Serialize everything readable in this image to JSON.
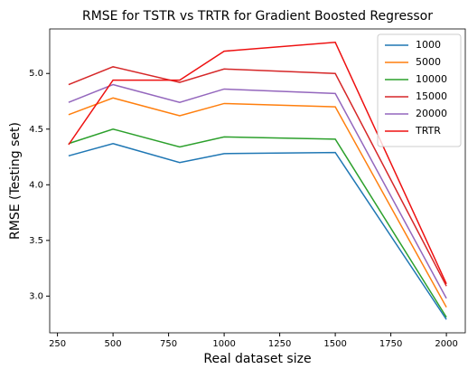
{
  "chart_data": {
    "type": "line",
    "title": "RMSE for TSTR vs TRTR for Gradient Boosted Regressor",
    "x_label": "Real dataset size",
    "y_label": "RMSE (Testing set)",
    "x": [
      300,
      500,
      800,
      1000,
      1500,
      2000
    ],
    "series": [
      {
        "name": "1000",
        "color": "#1f77b4",
        "values": [
          4.26,
          4.37,
          4.2,
          4.28,
          4.29,
          2.79
        ]
      },
      {
        "name": "5000",
        "color": "#ff7f0e",
        "values": [
          4.63,
          4.78,
          4.62,
          4.73,
          4.7,
          2.9
        ]
      },
      {
        "name": "10000",
        "color": "#2ca02c",
        "values": [
          4.37,
          4.5,
          4.34,
          4.43,
          4.41,
          2.81
        ]
      },
      {
        "name": "15000",
        "color": "#d62728",
        "values": [
          4.9,
          5.06,
          4.92,
          5.04,
          5.0,
          3.09
        ]
      },
      {
        "name": "20000",
        "color": "#9467bd",
        "values": [
          4.74,
          4.9,
          4.74,
          4.86,
          4.82,
          2.98
        ]
      },
      {
        "name": "TRTR",
        "color": "#ee1111",
        "values": [
          4.36,
          4.94,
          4.94,
          5.2,
          5.28,
          3.11
        ]
      }
    ],
    "xlim": [
      215,
      2085
    ],
    "ylim": [
      2.67,
      5.4
    ],
    "xticks": [
      250,
      500,
      750,
      1000,
      1250,
      1500,
      1750,
      2000
    ],
    "yticks": [
      {
        "value": 3,
        "label": "3.0"
      },
      3.5,
      {
        "value": 4,
        "label": "4.0"
      },
      4.5,
      {
        "value": 5,
        "label": "5.0"
      }
    ],
    "legend": "upper right"
  }
}
